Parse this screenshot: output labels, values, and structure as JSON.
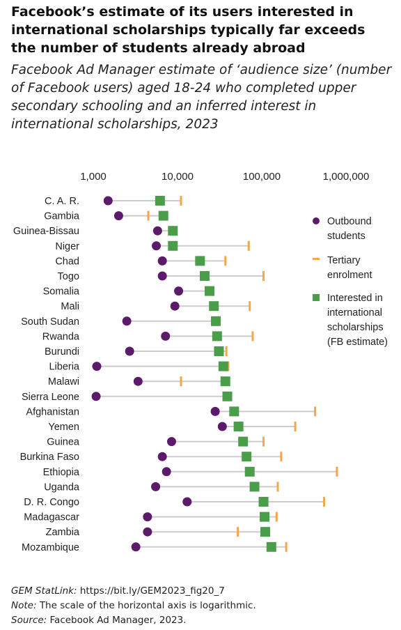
{
  "title": "Facebook’s estimate of its users interested in international scholarships typically far exceeds the number of students already abroad",
  "subtitle": "Facebook Ad Manager estimate of ‘audience size’ (number of Facebook users) aged 18-24 who completed upper secondary schooling and an inferred interest in international scholarships, 2023",
  "footer": {
    "statlink_label": "GEM StatLink:",
    "statlink_url": "https://bit.ly/GEM2023_fig20_7",
    "note_label": "Note:",
    "note_text": "The scale of the horizontal axis is logarithmic.",
    "source_label": "Source:",
    "source_text": "Facebook Ad Manager, 2023."
  },
  "colors": {
    "outbound": "#5c1a6b",
    "tertiary": "#f5a54a",
    "interested": "#4a9e4a",
    "connector": "#cccccc"
  },
  "chart_data": {
    "type": "scatter",
    "x_scale": "log",
    "xlim": [
      1000,
      1000000
    ],
    "x_ticks": [
      1000,
      10000,
      100000,
      1000000
    ],
    "x_tick_labels": [
      "1,000",
      "10,000",
      "100,000",
      "1,000,000"
    ],
    "categories": [
      "C. A. R.",
      "Gambia",
      "Guinea-Bissau",
      "Niger",
      "Chad",
      "Togo",
      "Somalia",
      "Mali",
      "South Sudan",
      "Rwanda",
      "Burundi",
      "Liberia",
      "Malawi",
      "Sierra Leone",
      "Afghanistan",
      "Yemen",
      "Guinea",
      "Burkina Faso",
      "Ethiopia",
      "Uganda",
      "D. R. Congo",
      "Madagascar",
      "Zambia",
      "Mozambique"
    ],
    "series": [
      {
        "name": "Outbound students",
        "marker": "circle",
        "values": [
          1500,
          2000,
          5800,
          5600,
          6600,
          6600,
          10300,
          9300,
          2500,
          7200,
          2700,
          1100,
          3400,
          1080,
          28000,
          34000,
          8500,
          6600,
          7400,
          5500,
          13000,
          4400,
          4400,
          3200
        ]
      },
      {
        "name": "Tertiary enrolment",
        "marker": "dash",
        "values": [
          11000,
          4500,
          null,
          70000,
          37000,
          105000,
          null,
          72000,
          null,
          78000,
          38000,
          40000,
          11000,
          null,
          430000,
          250000,
          105000,
          170000,
          780000,
          155000,
          550000,
          150000,
          52000,
          195000
        ]
      },
      {
        "name": "Interested in international scholarships (FB estimate)",
        "marker": "square",
        "values": [
          6200,
          6800,
          8800,
          8800,
          18500,
          21000,
          24000,
          27000,
          28500,
          29500,
          31000,
          35000,
          37000,
          39000,
          47000,
          53000,
          60000,
          66000,
          72000,
          82000,
          105000,
          108000,
          110000,
          130000
        ]
      }
    ],
    "legend_placement": "right",
    "legend": [
      "Outbound students",
      "Tertiary enrolment",
      "Interested in international scholarships (FB estimate)"
    ]
  }
}
